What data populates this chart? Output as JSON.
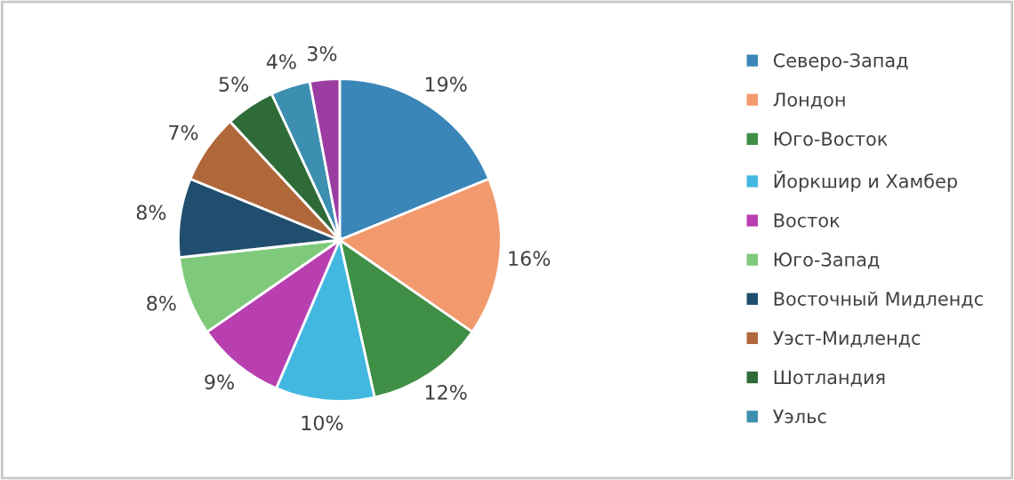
{
  "chart_data": {
    "type": "pie",
    "categories": [
      "Северо-Запад",
      "Лондон",
      "Юго-Восток",
      "Йоркшир и Хамбер",
      "Восток",
      "Юго-Запад",
      "Восточный Мидлендс",
      "Уэст-Мидлендс",
      "Шотландия",
      "Уэльс",
      null
    ],
    "values": [
      19,
      16,
      12,
      10,
      9,
      8,
      8,
      7,
      5,
      4,
      3
    ],
    "colors": [
      "#3a86b8",
      "#f29a6e",
      "#3f8f47",
      "#42b8e0",
      "#b93fb0",
      "#7fc97a",
      "#1f4e6e",
      "#b0673a",
      "#2f6b38",
      "#3d8fb0",
      "#9b3da0"
    ],
    "value_labels": [
      "19%",
      "16%",
      "12%",
      "10%",
      "9%",
      "8%",
      "8%",
      "7%",
      "5%",
      "4%",
      "3%"
    ],
    "legend": "right"
  }
}
